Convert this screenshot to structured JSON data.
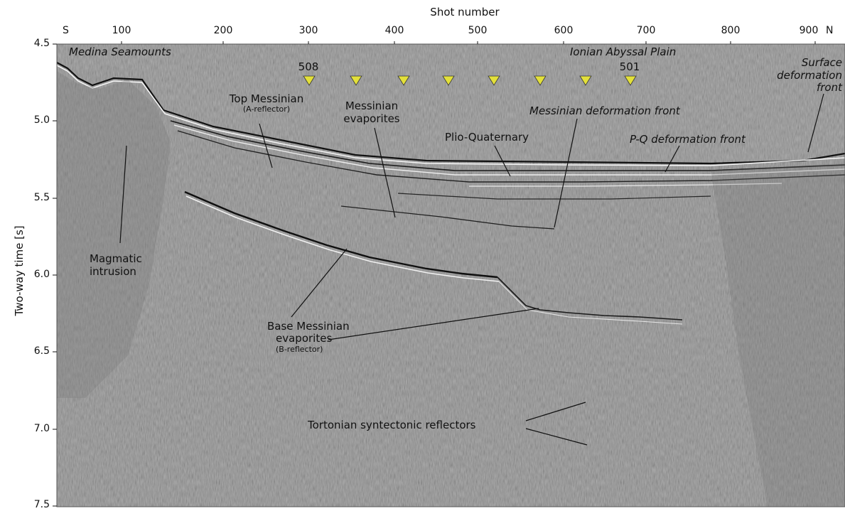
{
  "x_axis": {
    "title": "Shot number",
    "ticks": [
      "100",
      "200",
      "300",
      "400",
      "500",
      "600",
      "700",
      "800",
      "900"
    ],
    "end_left": "S",
    "end_right": "N"
  },
  "y_axis": {
    "title": "Two-way time [s]",
    "ticks": [
      "4.5",
      "5.0",
      "5.5",
      "6.0",
      "6.5",
      "7.0",
      "7.5"
    ]
  },
  "regions": {
    "left": "Medina Seamounts",
    "right": "Ionian Abyssal Plain"
  },
  "sites": {
    "first": "508",
    "last": "501",
    "marker_color": "#e3e03a"
  },
  "annotations": {
    "surface_front": [
      "Surface",
      "deformation",
      "front"
    ],
    "top_messinian": "Top Messinian",
    "a_reflector": "(A-reflector)",
    "messinian_evaporites": [
      "Messinian",
      "evaporites"
    ],
    "messinian_front": "Messinian deformation front",
    "plio_quaternary": "Plio-Quaternary",
    "pq_front": "P-Q deformation front",
    "magmatic": [
      "Magmatic",
      "intrusion"
    ],
    "base_messinian": [
      "Base Messinian",
      "evaporites"
    ],
    "b_reflector": "(B-reflector)",
    "tortonian": "Tortonian syntectonic reflectors"
  },
  "colors": {
    "background": "#8a8a8a",
    "marker": "#e3e03a"
  }
}
